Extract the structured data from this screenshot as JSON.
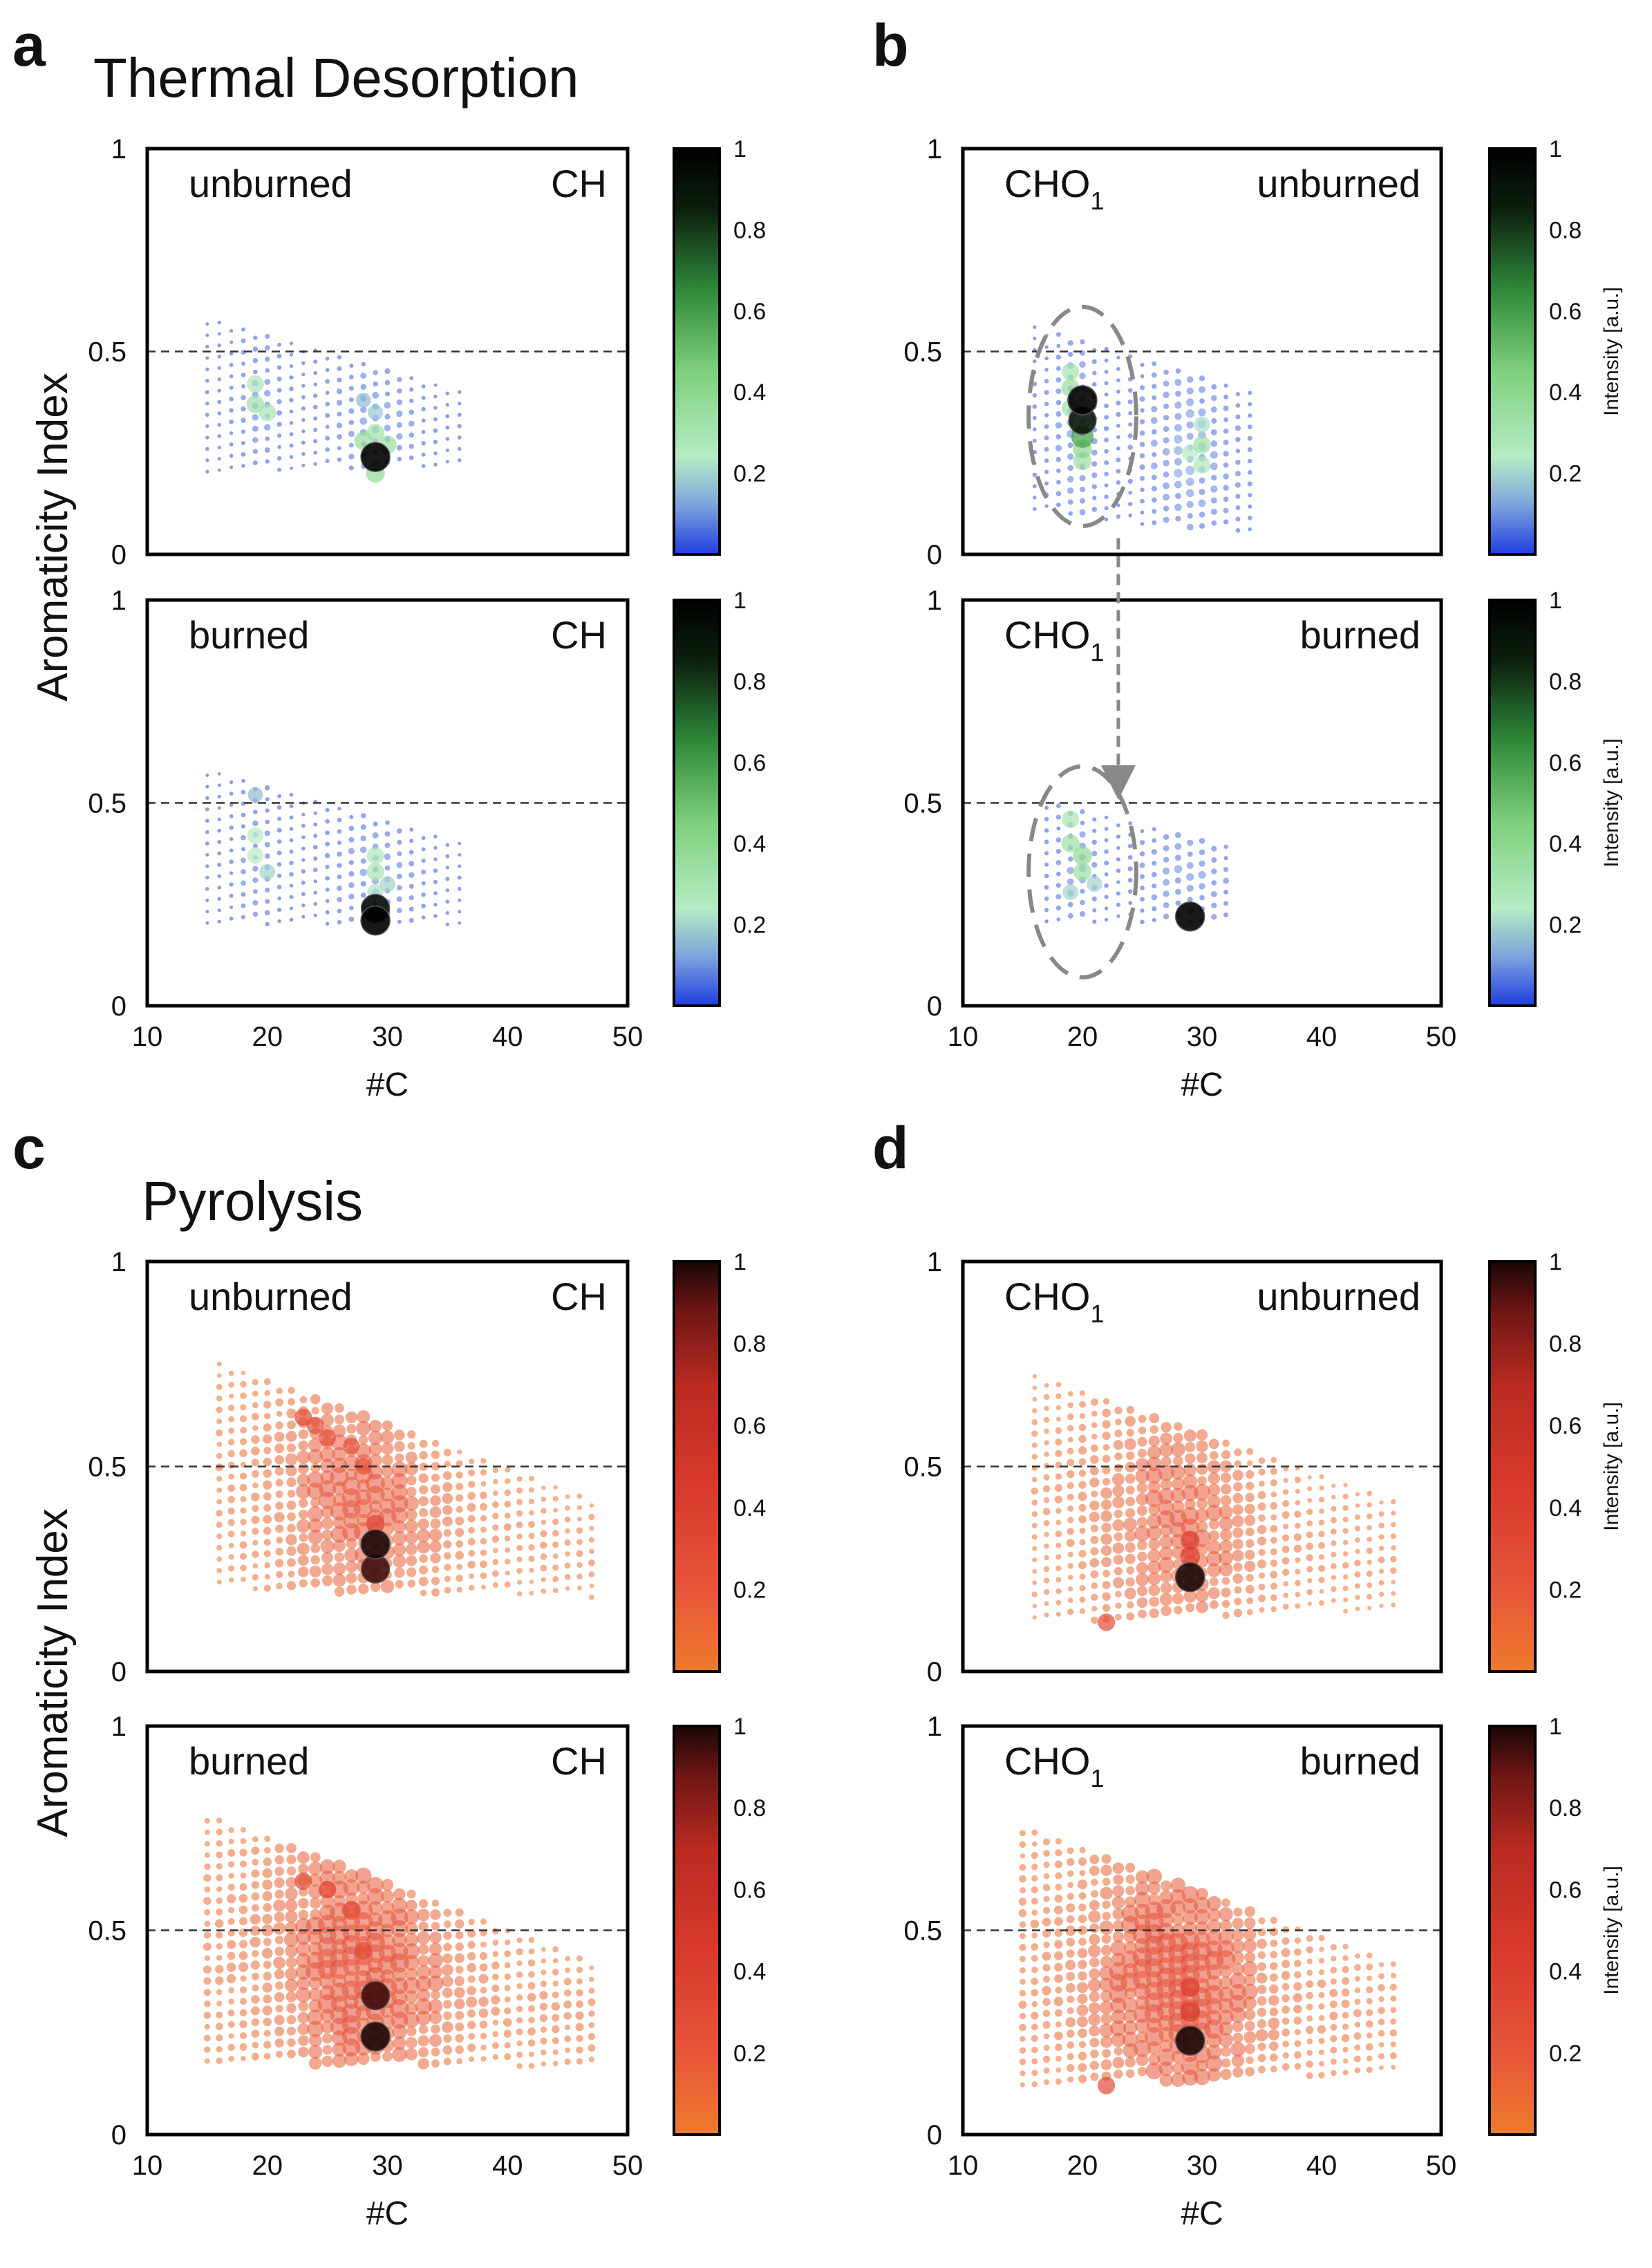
{
  "panel_letters": {
    "a": "a",
    "b": "b",
    "c": "c",
    "d": "d"
  },
  "section_titles": {
    "thermal": "Thermal Desorption",
    "pyrolysis": "Pyrolysis"
  },
  "axis_labels": {
    "y": "Aromaticity Index",
    "x": "#C",
    "colorbar": "Intensity [a.u.]"
  },
  "colors": {
    "thermal_scale": [
      "#1f3ee0",
      "#7ea2dd",
      "#b6ecc4",
      "#7fd07e",
      "#2f8a3a",
      "#0c1f0e",
      "#000000"
    ],
    "pyrolysis_scale": [
      "#ee7a2c",
      "#e7553a",
      "#d83a2c",
      "#b92a22",
      "#6e1614",
      "#1a0606"
    ],
    "dashed_line": "#333333",
    "ellipse": "#888888"
  },
  "chart_data": [
    {
      "id": "a-top",
      "type": "scatter",
      "section": "Thermal Desorption",
      "panel": "a",
      "title_left": "unburned",
      "title_right": "CH",
      "subscript": "",
      "xlabel": "",
      "ylabel": "Aromaticity Index",
      "xlim": [
        10,
        50
      ],
      "ylim": [
        0,
        1
      ],
      "xticks": [],
      "yticks": [
        "0",
        "0.5",
        "1"
      ],
      "reference_line_y": 0.5,
      "colorbar": {
        "ticks": [
          "0.2",
          "0.4",
          "0.6",
          "0.8",
          "1"
        ],
        "label": ""
      },
      "colormap": "thermal",
      "cloud": {
        "x_min": 15,
        "x_max": 36,
        "ai_top": 0.58,
        "ai_bot_left": 0.2,
        "ai_bot_right": 0.22,
        "density": 0.6
      },
      "hotspots": [
        {
          "x": 19,
          "y": 0.42,
          "v": 0.28
        },
        {
          "x": 19,
          "y": 0.37,
          "v": 0.32
        },
        {
          "x": 20,
          "y": 0.35,
          "v": 0.3
        },
        {
          "x": 28,
          "y": 0.38,
          "v": 0.16
        },
        {
          "x": 29,
          "y": 0.35,
          "v": 0.18
        },
        {
          "x": 29,
          "y": 0.3,
          "v": 0.32
        },
        {
          "x": 28,
          "y": 0.28,
          "v": 0.36
        },
        {
          "x": 30,
          "y": 0.27,
          "v": 0.35
        },
        {
          "x": 29,
          "y": 0.2,
          "v": 0.38
        },
        {
          "x": 29,
          "y": 0.24,
          "v": 1.0
        }
      ]
    },
    {
      "id": "a-bottom",
      "type": "scatter",
      "section": "Thermal Desorption",
      "panel": "a",
      "title_left": "burned",
      "title_right": "CH",
      "subscript": "",
      "xlabel": "#C",
      "ylabel": "Aromaticity Index",
      "xlim": [
        10,
        50
      ],
      "ylim": [
        0,
        1
      ],
      "xticks": [
        "10",
        "20",
        "30",
        "40",
        "50"
      ],
      "yticks": [
        "0",
        "0.5",
        "1"
      ],
      "reference_line_y": 0.5,
      "colorbar": {
        "ticks": [
          "0.2",
          "0.4",
          "0.6",
          "0.8",
          "1"
        ],
        "label": ""
      },
      "colormap": "thermal",
      "cloud": {
        "x_min": 15,
        "x_max": 36,
        "ai_top": 0.58,
        "ai_bot_left": 0.2,
        "ai_bot_right": 0.2,
        "density": 0.6
      },
      "hotspots": [
        {
          "x": 19,
          "y": 0.52,
          "v": 0.16
        },
        {
          "x": 19,
          "y": 0.42,
          "v": 0.24
        },
        {
          "x": 19,
          "y": 0.37,
          "v": 0.24
        },
        {
          "x": 20,
          "y": 0.33,
          "v": 0.2
        },
        {
          "x": 29,
          "y": 0.37,
          "v": 0.28
        },
        {
          "x": 29,
          "y": 0.33,
          "v": 0.3
        },
        {
          "x": 29,
          "y": 0.28,
          "v": 0.22
        },
        {
          "x": 30,
          "y": 0.3,
          "v": 0.2
        },
        {
          "x": 29,
          "y": 0.24,
          "v": 0.95
        },
        {
          "x": 29,
          "y": 0.21,
          "v": 1.0
        }
      ]
    },
    {
      "id": "b-top",
      "type": "scatter",
      "section": "Thermal Desorption",
      "panel": "b",
      "title_left": "CHO",
      "title_right": "unburned",
      "subscript": "1",
      "xlabel": "",
      "ylabel": "",
      "xlim": [
        10,
        50
      ],
      "ylim": [
        0,
        1
      ],
      "xticks": [],
      "yticks": [
        "0",
        "0.5",
        "1"
      ],
      "reference_line_y": 0.5,
      "colorbar": {
        "ticks": [
          "0.2",
          "0.4",
          "0.6",
          "0.8",
          "1"
        ],
        "label": "Intensity [a.u.]"
      },
      "colormap": "thermal",
      "cloud": {
        "x_min": 16,
        "x_max": 34,
        "ai_top": 0.56,
        "ai_bot_left": 0.1,
        "ai_bot_right": 0.05,
        "density": 0.8
      },
      "ellipse": {
        "cx": 20,
        "cy": 0.34,
        "rx": 4.5,
        "ry": 0.27
      },
      "hotspots": [
        {
          "x": 19,
          "y": 0.45,
          "v": 0.3
        },
        {
          "x": 19,
          "y": 0.41,
          "v": 0.35
        },
        {
          "x": 19,
          "y": 0.36,
          "v": 0.32
        },
        {
          "x": 20,
          "y": 0.26,
          "v": 0.4
        },
        {
          "x": 20,
          "y": 0.23,
          "v": 0.35
        },
        {
          "x": 20,
          "y": 0.38,
          "v": 1.0
        },
        {
          "x": 20,
          "y": 0.33,
          "v": 0.9
        },
        {
          "x": 20,
          "y": 0.29,
          "v": 0.6
        },
        {
          "x": 30,
          "y": 0.32,
          "v": 0.22
        },
        {
          "x": 30,
          "y": 0.27,
          "v": 0.32
        },
        {
          "x": 30,
          "y": 0.22,
          "v": 0.28
        },
        {
          "x": 29,
          "y": 0.25,
          "v": 0.24
        }
      ]
    },
    {
      "id": "b-bottom",
      "type": "scatter",
      "section": "Thermal Desorption",
      "panel": "b",
      "title_left": "CHO",
      "title_right": "burned",
      "subscript": "1",
      "xlabel": "#C",
      "ylabel": "",
      "xlim": [
        10,
        50
      ],
      "ylim": [
        0,
        1
      ],
      "xticks": [
        "10",
        "20",
        "30",
        "40",
        "50"
      ],
      "yticks": [
        "0",
        "0.5",
        "1"
      ],
      "reference_line_y": 0.5,
      "colorbar": {
        "ticks": [
          "0.2",
          "0.4",
          "0.6",
          "0.8",
          "1"
        ],
        "label": "Intensity [a.u.]"
      },
      "colormap": "thermal",
      "cloud": {
        "x_min": 17,
        "x_max": 32,
        "ai_top": 0.5,
        "ai_bot_left": 0.2,
        "ai_bot_right": 0.2,
        "density": 0.7
      },
      "ellipse": {
        "cx": 20,
        "cy": 0.33,
        "rx": 4.5,
        "ry": 0.26
      },
      "hotspots": [
        {
          "x": 19,
          "y": 0.46,
          "v": 0.3
        },
        {
          "x": 19,
          "y": 0.4,
          "v": 0.34
        },
        {
          "x": 20,
          "y": 0.37,
          "v": 0.38
        },
        {
          "x": 20,
          "y": 0.33,
          "v": 0.34
        },
        {
          "x": 19,
          "y": 0.28,
          "v": 0.2
        },
        {
          "x": 21,
          "y": 0.3,
          "v": 0.2
        },
        {
          "x": 29,
          "y": 0.22,
          "v": 1.0
        }
      ]
    },
    {
      "id": "c-top",
      "type": "scatter",
      "section": "Pyrolysis",
      "panel": "c",
      "title_left": "unburned",
      "title_right": "CH",
      "subscript": "",
      "xlabel": "",
      "ylabel": "Aromaticity Index",
      "xlim": [
        10,
        50
      ],
      "ylim": [
        0,
        1
      ],
      "xticks": [],
      "yticks": [
        "0",
        "0.5",
        "1"
      ],
      "reference_line_y": 0.5,
      "colorbar": {
        "ticks": [
          "0.2",
          "0.4",
          "0.6",
          "0.8",
          "1"
        ],
        "label": ""
      },
      "colormap": "pyrolysis",
      "cloud": {
        "x_min": 16,
        "x_max": 47,
        "ai_top": 0.75,
        "ai_bot_left": 0.2,
        "ai_bot_right": 0.18,
        "density": 1.0
      },
      "hotspots": [
        {
          "x": 23,
          "y": 0.62,
          "v": 0.3
        },
        {
          "x": 24,
          "y": 0.6,
          "v": 0.3
        },
        {
          "x": 25,
          "y": 0.57,
          "v": 0.28
        },
        {
          "x": 27,
          "y": 0.55,
          "v": 0.25
        },
        {
          "x": 28,
          "y": 0.5,
          "v": 0.24
        },
        {
          "x": 29,
          "y": 0.31,
          "v": 1.0
        },
        {
          "x": 29,
          "y": 0.25,
          "v": 0.95
        },
        {
          "x": 29,
          "y": 0.36,
          "v": 0.35
        }
      ]
    },
    {
      "id": "c-bottom",
      "type": "scatter",
      "section": "Pyrolysis",
      "panel": "c",
      "title_left": "burned",
      "title_right": "CH",
      "subscript": "",
      "xlabel": "#C",
      "ylabel": "Aromaticity Index",
      "xlim": [
        10,
        50
      ],
      "ylim": [
        0,
        1
      ],
      "xticks": [
        "10",
        "20",
        "30",
        "40",
        "50"
      ],
      "yticks": [
        "0",
        "0.5",
        "1"
      ],
      "reference_line_y": 0.5,
      "colorbar": {
        "ticks": [
          "0.2",
          "0.4",
          "0.6",
          "0.8",
          "1"
        ],
        "label": ""
      },
      "colormap": "pyrolysis",
      "cloud": {
        "x_min": 15,
        "x_max": 47,
        "ai_top": 0.78,
        "ai_bot_left": 0.18,
        "ai_bot_right": 0.16,
        "density": 1.3
      },
      "hotspots": [
        {
          "x": 23,
          "y": 0.62,
          "v": 0.3
        },
        {
          "x": 25,
          "y": 0.6,
          "v": 0.3
        },
        {
          "x": 27,
          "y": 0.55,
          "v": 0.28
        },
        {
          "x": 29,
          "y": 0.34,
          "v": 0.95
        },
        {
          "x": 29,
          "y": 0.24,
          "v": 1.0
        },
        {
          "x": 28,
          "y": 0.45,
          "v": 0.3
        }
      ]
    },
    {
      "id": "d-top",
      "type": "scatter",
      "section": "Pyrolysis",
      "panel": "d",
      "title_left": "CHO",
      "title_right": "unburned",
      "subscript": "1",
      "xlabel": "",
      "ylabel": "",
      "xlim": [
        10,
        50
      ],
      "ylim": [
        0,
        1
      ],
      "xticks": [],
      "yticks": [
        "0",
        "0.5",
        "1"
      ],
      "reference_line_y": 0.5,
      "colorbar": {
        "ticks": [
          "0.2",
          "0.4",
          "0.6",
          "0.8",
          "1"
        ],
        "label": "Intensity [a.u.]"
      },
      "colormap": "pyrolysis",
      "cloud": {
        "x_min": 16,
        "x_max": 46,
        "ai_top": 0.72,
        "ai_bot_left": 0.12,
        "ai_bot_right": 0.15,
        "density": 0.9
      },
      "hotspots": [
        {
          "x": 29,
          "y": 0.32,
          "v": 0.4
        },
        {
          "x": 29,
          "y": 0.28,
          "v": 0.45
        },
        {
          "x": 29,
          "y": 0.23,
          "v": 1.0
        },
        {
          "x": 22,
          "y": 0.12,
          "v": 0.3
        }
      ]
    },
    {
      "id": "d-bottom",
      "type": "scatter",
      "section": "Pyrolysis",
      "panel": "d",
      "title_left": "CHO",
      "title_right": "burned",
      "subscript": "1",
      "xlabel": "#C",
      "ylabel": "",
      "xlim": [
        10,
        50
      ],
      "ylim": [
        0,
        1
      ],
      "xticks": [
        "10",
        "20",
        "30",
        "40",
        "50"
      ],
      "yticks": [
        "0",
        "0.5",
        "1"
      ],
      "reference_line_y": 0.5,
      "colorbar": {
        "ticks": [
          "0.2",
          "0.4",
          "0.6",
          "0.8",
          "1"
        ],
        "label": "Intensity [a.u.]"
      },
      "colormap": "pyrolysis",
      "cloud": {
        "x_min": 15,
        "x_max": 46,
        "ai_top": 0.75,
        "ai_bot_left": 0.12,
        "ai_bot_right": 0.15,
        "density": 1.3
      },
      "hotspots": [
        {
          "x": 29,
          "y": 0.36,
          "v": 0.4
        },
        {
          "x": 29,
          "y": 0.3,
          "v": 0.45
        },
        {
          "x": 29,
          "y": 0.23,
          "v": 1.0
        },
        {
          "x": 22,
          "y": 0.12,
          "v": 0.3
        }
      ]
    }
  ]
}
